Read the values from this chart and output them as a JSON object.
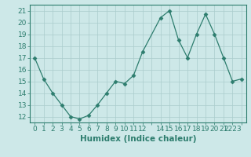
{
  "x": [
    0,
    1,
    2,
    3,
    4,
    5,
    6,
    7,
    8,
    9,
    10,
    11,
    12,
    14,
    15,
    16,
    17,
    18,
    19,
    20,
    21,
    22,
    23
  ],
  "y": [
    17.0,
    15.2,
    14.0,
    13.0,
    12.0,
    11.8,
    12.1,
    13.0,
    14.0,
    15.0,
    14.8,
    15.5,
    17.5,
    20.4,
    21.0,
    18.5,
    17.0,
    19.0,
    20.7,
    19.0,
    17.0,
    15.0,
    15.2
  ],
  "line_color": "#2d7d6e",
  "marker": "D",
  "marker_size": 2.5,
  "bg_color": "#cde8e8",
  "grid_color": "#aacccc",
  "xlabel": "Humidex (Indice chaleur)",
  "ylabel_ticks": [
    12,
    13,
    14,
    15,
    16,
    17,
    18,
    19,
    20,
    21
  ],
  "ylim": [
    11.5,
    21.5
  ],
  "xlim": [
    -0.5,
    23.5
  ],
  "tick_color": "#2d7d6e",
  "label_fontsize": 7.5,
  "tick_fontsize": 6.5
}
